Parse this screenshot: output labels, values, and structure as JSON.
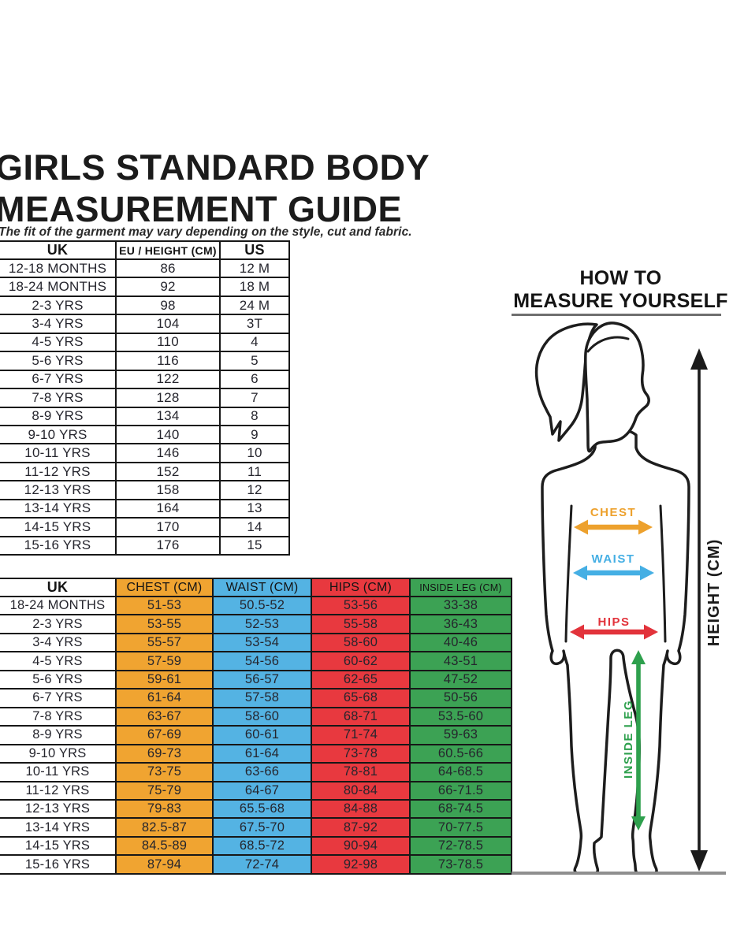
{
  "page": {
    "title_line1": "GIRLS STANDARD BODY",
    "title_line2": "MEASUREMENT GUIDE",
    "subtitle": "The fit of the garment may vary depending on the style, cut and fabric."
  },
  "size_conversion_table": {
    "columns": [
      {
        "label": "UK"
      },
      {
        "label": "EU / HEIGHT (CM)"
      },
      {
        "label": "US"
      }
    ],
    "rows": [
      [
        "12-18 MONTHS",
        "86",
        "12 M"
      ],
      [
        "18-24 MONTHS",
        "92",
        "18 M"
      ],
      [
        "2-3 YRS",
        "98",
        "24 M"
      ],
      [
        "3-4 YRS",
        "104",
        "3T"
      ],
      [
        "4-5 YRS",
        "110",
        "4"
      ],
      [
        "5-6 YRS",
        "116",
        "5"
      ],
      [
        "6-7 YRS",
        "122",
        "6"
      ],
      [
        "7-8 YRS",
        "128",
        "7"
      ],
      [
        "8-9 YRS",
        "134",
        "8"
      ],
      [
        "9-10 YRS",
        "140",
        "9"
      ],
      [
        "10-11 YRS",
        "146",
        "10"
      ],
      [
        "11-12 YRS",
        "152",
        "11"
      ],
      [
        "12-13 YRS",
        "158",
        "12"
      ],
      [
        "13-14 YRS",
        "164",
        "13"
      ],
      [
        "14-15 YRS",
        "170",
        "14"
      ],
      [
        "15-16 YRS",
        "176",
        "15"
      ]
    ]
  },
  "body_measurement_table": {
    "columns": [
      {
        "label": "UK",
        "bg": "#FFFFFF",
        "fill_cells": false
      },
      {
        "label": "CHEST (CM)",
        "bg": "#F0A431",
        "fill_cells": true
      },
      {
        "label": "WAIST (CM)",
        "bg": "#54B3E3",
        "fill_cells": true
      },
      {
        "label": "HIPS (CM)",
        "bg": "#E8393F",
        "fill_cells": true
      },
      {
        "label": "INSIDE LEG (CM)",
        "bg": "#3CA254",
        "fill_cells": true
      }
    ],
    "rows": [
      [
        "18-24 MONTHS",
        "51-53",
        "50.5-52",
        "53-56",
        "33-38"
      ],
      [
        "2-3 YRS",
        "53-55",
        "52-53",
        "55-58",
        "36-43"
      ],
      [
        "3-4 YRS",
        "55-57",
        "53-54",
        "58-60",
        "40-46"
      ],
      [
        "4-5 YRS",
        "57-59",
        "54-56",
        "60-62",
        "43-51"
      ],
      [
        "5-6 YRS",
        "59-61",
        "56-57",
        "62-65",
        "47-52"
      ],
      [
        "6-7 YRS",
        "61-64",
        "57-58",
        "65-68",
        "50-56"
      ],
      [
        "7-8 YRS",
        "63-67",
        "58-60",
        "68-71",
        "53.5-60"
      ],
      [
        "8-9 YRS",
        "67-69",
        "60-61",
        "71-74",
        "59-63"
      ],
      [
        "9-10 YRS",
        "69-73",
        "61-64",
        "73-78",
        "60.5-66"
      ],
      [
        "10-11 YRS",
        "73-75",
        "63-66",
        "78-81",
        "64-68.5"
      ],
      [
        "11-12 YRS",
        "75-79",
        "64-67",
        "80-84",
        "66-71.5"
      ],
      [
        "12-13 YRS",
        "79-83",
        "65.5-68",
        "84-88",
        "68-74.5"
      ],
      [
        "13-14 YRS",
        "82.5-87",
        "67.5-70",
        "87-92",
        "70-77.5"
      ],
      [
        "14-15 YRS",
        "84.5-89",
        "68.5-72",
        "90-94",
        "72-78.5"
      ],
      [
        "15-16 YRS",
        "87-94",
        "72-74",
        "92-98",
        "73-78.5"
      ]
    ]
  },
  "measure_guide": {
    "heading_line1": "HOW TO",
    "heading_line2": "MEASURE YOURSELF",
    "labels": {
      "chest": {
        "text": "CHEST",
        "color": "#EDA12D"
      },
      "waist": {
        "text": "WAIST",
        "color": "#45AFE4"
      },
      "hips": {
        "text": "HIPS",
        "color": "#E2333B"
      },
      "inside_leg": {
        "text": "INSIDE LEG",
        "color": "#2EA04D"
      },
      "height": {
        "text": "HEIGHT (CM)",
        "color": "#1B1B1B"
      }
    }
  }
}
